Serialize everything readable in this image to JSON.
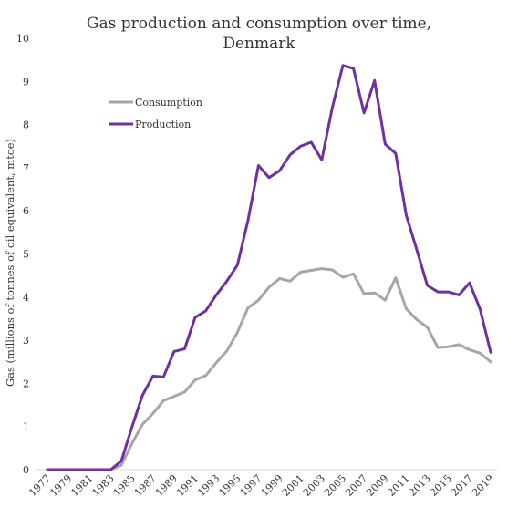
{
  "chart_data": {
    "type": "line",
    "title_line1": "Gas production and consumption over time,",
    "title_line2": "Denmark",
    "ylabel": "Gas (millions of tonnes of oil equivalent, mtoe)",
    "xlabel": "",
    "ylim": [
      0,
      10
    ],
    "yticks": [
      "0",
      "1",
      "2",
      "3",
      "4",
      "5",
      "6",
      "7",
      "8",
      "9",
      "10"
    ],
    "xtick_labels": [
      "1977",
      "1979",
      "1981",
      "1983",
      "1985",
      "1987",
      "1989",
      "1991",
      "1993",
      "1995",
      "1997",
      "1999",
      "2001",
      "2003",
      "2005",
      "2007",
      "2009",
      "2011",
      "2013",
      "2015",
      "2017",
      "2019"
    ],
    "x": [
      1977,
      1978,
      1979,
      1980,
      1981,
      1982,
      1983,
      1984,
      1985,
      1986,
      1987,
      1988,
      1989,
      1990,
      1991,
      1992,
      1993,
      1994,
      1995,
      1996,
      1997,
      1998,
      1999,
      2000,
      2001,
      2002,
      2003,
      2004,
      2005,
      2006,
      2007,
      2008,
      2009,
      2010,
      2011,
      2012,
      2013,
      2014,
      2015,
      2016,
      2017,
      2018,
      2019
    ],
    "grid": false,
    "legend_position": "top-left",
    "series": [
      {
        "name": "Consumption",
        "color": "#a6a6a6",
        "values": [
          0,
          0,
          0,
          0,
          0,
          0,
          0,
          0.1,
          0.6,
          1.05,
          1.3,
          1.6,
          1.7,
          1.8,
          2.08,
          2.18,
          2.48,
          2.75,
          3.18,
          3.75,
          3.93,
          4.23,
          4.43,
          4.37,
          4.58,
          4.62,
          4.66,
          4.63,
          4.46,
          4.54,
          4.08,
          4.1,
          3.93,
          4.45,
          3.73,
          3.48,
          3.3,
          2.83,
          2.85,
          2.9,
          2.78,
          2.7,
          2.5
        ]
      },
      {
        "name": "Production",
        "color": "#7030a0",
        "values": [
          0,
          0,
          0,
          0,
          0,
          0,
          0,
          0.2,
          0.98,
          1.72,
          2.17,
          2.15,
          2.74,
          2.8,
          3.53,
          3.68,
          4.05,
          4.37,
          4.74,
          5.77,
          7.05,
          6.77,
          6.93,
          7.3,
          7.5,
          7.59,
          7.18,
          8.4,
          9.37,
          9.3,
          8.27,
          9.02,
          7.55,
          7.33,
          5.9,
          5.1,
          4.27,
          4.12,
          4.12,
          4.05,
          4.33,
          3.72,
          2.72
        ]
      }
    ]
  }
}
